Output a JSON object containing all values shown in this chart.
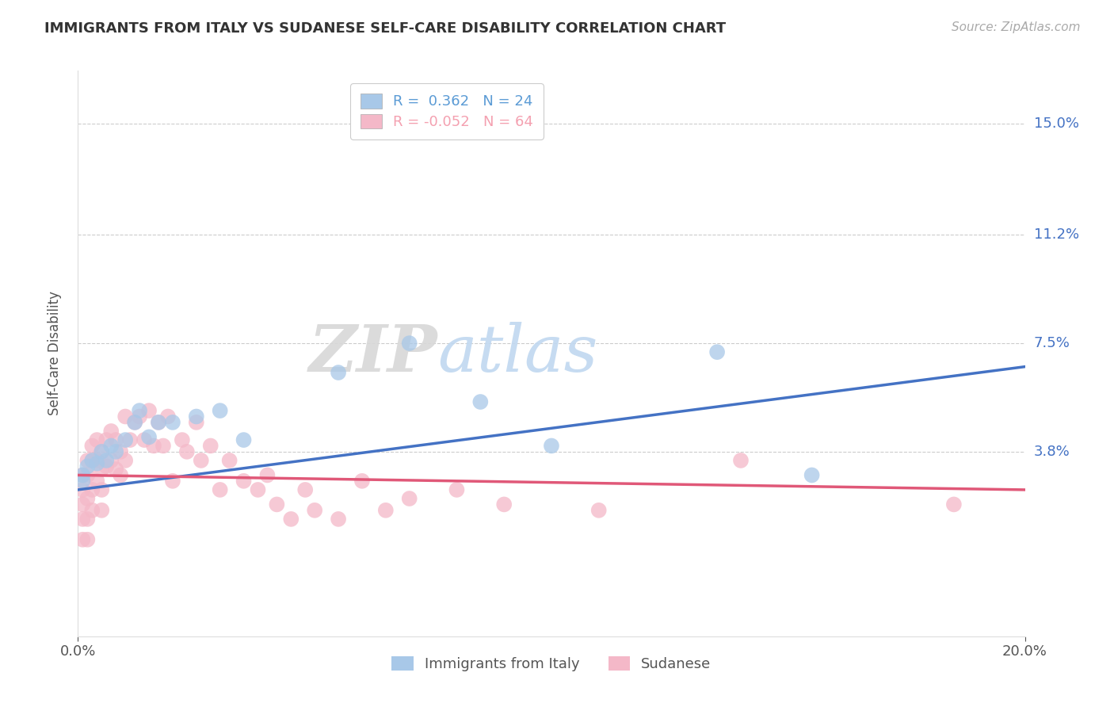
{
  "title": "IMMIGRANTS FROM ITALY VS SUDANESE SELF-CARE DISABILITY CORRELATION CHART",
  "source": "Source: ZipAtlas.com",
  "ylabel": "Self-Care Disability",
  "ytick_labels": [
    "3.8%",
    "7.5%",
    "11.2%",
    "15.0%"
  ],
  "ytick_values": [
    0.038,
    0.075,
    0.112,
    0.15
  ],
  "xlim": [
    0.0,
    0.2
  ],
  "ylim": [
    -0.025,
    0.168
  ],
  "legend_entries": [
    {
      "label": "R =  0.362   N = 24",
      "color": "#5b9bd5"
    },
    {
      "label": "R = -0.052   N = 64",
      "color": "#f4a0b0"
    }
  ],
  "legend_label_italy": "Immigrants from Italy",
  "legend_label_sudanese": "Sudanese",
  "blue_color": "#a8c8e8",
  "pink_color": "#f4b8c8",
  "blue_line_color": "#4472c4",
  "pink_line_color": "#e05878",
  "background_color": "#ffffff",
  "scatter_blue": {
    "x": [
      0.001,
      0.001,
      0.002,
      0.003,
      0.004,
      0.005,
      0.006,
      0.007,
      0.008,
      0.01,
      0.012,
      0.013,
      0.015,
      0.017,
      0.02,
      0.025,
      0.03,
      0.035,
      0.055,
      0.07,
      0.085,
      0.1,
      0.135,
      0.155
    ],
    "y": [
      0.028,
      0.03,
      0.033,
      0.035,
      0.034,
      0.038,
      0.035,
      0.04,
      0.038,
      0.042,
      0.048,
      0.052,
      0.043,
      0.048,
      0.048,
      0.05,
      0.052,
      0.042,
      0.065,
      0.075,
      0.055,
      0.04,
      0.072,
      0.03
    ]
  },
  "scatter_pink": {
    "x": [
      0.001,
      0.001,
      0.001,
      0.001,
      0.001,
      0.002,
      0.002,
      0.002,
      0.002,
      0.002,
      0.003,
      0.003,
      0.003,
      0.003,
      0.004,
      0.004,
      0.004,
      0.005,
      0.005,
      0.005,
      0.005,
      0.006,
      0.006,
      0.007,
      0.007,
      0.008,
      0.008,
      0.009,
      0.009,
      0.01,
      0.01,
      0.011,
      0.012,
      0.013,
      0.014,
      0.015,
      0.016,
      0.017,
      0.018,
      0.019,
      0.02,
      0.022,
      0.023,
      0.025,
      0.026,
      0.028,
      0.03,
      0.032,
      0.035,
      0.038,
      0.04,
      0.042,
      0.045,
      0.048,
      0.05,
      0.055,
      0.06,
      0.065,
      0.07,
      0.08,
      0.09,
      0.11,
      0.14,
      0.185
    ],
    "y": [
      0.03,
      0.025,
      0.02,
      0.015,
      0.008,
      0.035,
      0.03,
      0.022,
      0.015,
      0.008,
      0.04,
      0.035,
      0.025,
      0.018,
      0.042,
      0.035,
      0.028,
      0.038,
      0.032,
      0.025,
      0.018,
      0.042,
      0.033,
      0.045,
      0.035,
      0.042,
      0.032,
      0.038,
      0.03,
      0.05,
      0.035,
      0.042,
      0.048,
      0.05,
      0.042,
      0.052,
      0.04,
      0.048,
      0.04,
      0.05,
      0.028,
      0.042,
      0.038,
      0.048,
      0.035,
      0.04,
      0.025,
      0.035,
      0.028,
      0.025,
      0.03,
      0.02,
      0.015,
      0.025,
      0.018,
      0.015,
      0.028,
      0.018,
      0.022,
      0.025,
      0.02,
      0.018,
      0.035,
      0.02
    ]
  },
  "trendline_blue": {
    "x": [
      0.0,
      0.2
    ],
    "y": [
      0.025,
      0.067
    ]
  },
  "trendline_pink": {
    "x": [
      0.0,
      0.2
    ],
    "y": [
      0.03,
      0.025
    ]
  }
}
